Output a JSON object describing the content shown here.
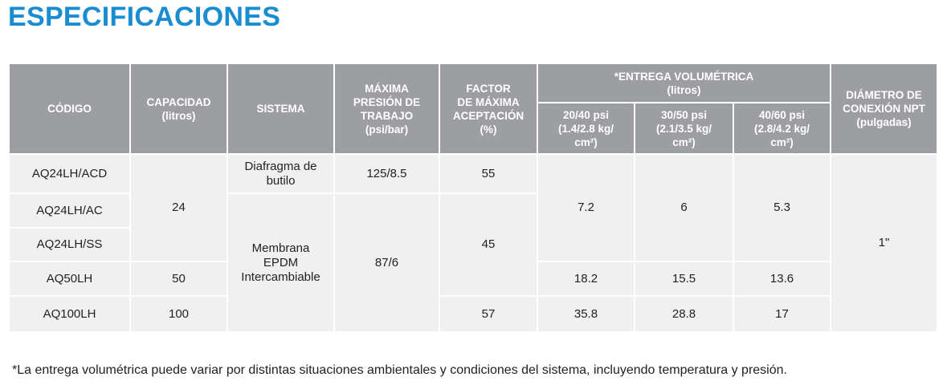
{
  "title": "ESPECIFICACIONES",
  "table": {
    "header_top": [
      "CÓDIGO",
      "CAPACIDAD\n(litros)",
      "SISTEMA",
      "MÁXIMA\nPRESIÓN DE\nTRABAJO\n(psi/bar)",
      "FACTOR\nDE MÁXIMA\nACEPTACIÓN\n(%)",
      "*ENTREGA VOLUMÉTRICA\n(litros)",
      "DIÁMETRO DE\nCONEXIÓN NPT\n(pulgadas)"
    ],
    "header_sub": [
      "20/40 psi\n(1.4/2.8 kg/\ncm²)",
      "30/50 psi\n(2.1/3.5 kg/\ncm²)",
      "40/60 psi\n(2.8/4.2 kg/\ncm²)"
    ],
    "rows": [
      [
        "AQ24LH/ACD",
        "24",
        "Diafragma de\nbutilo",
        "125/8.5",
        "55",
        "7.2",
        "6",
        "5.3",
        "1\""
      ],
      [
        "AQ24LH/AC",
        "Membrana\nEPDM\nIntercambiable",
        "87/6",
        "45"
      ],
      [
        "AQ24LH/SS"
      ],
      [
        "AQ50LH",
        "50",
        "18.2",
        "15.5",
        "13.6"
      ],
      [
        "AQ100LH",
        "100",
        "57",
        "35.8",
        "28.8",
        "17"
      ]
    ]
  },
  "footnote": "*La entrega volumétrica puede variar por distintas situaciones ambientales y condiciones del sistema, incluyendo temperatura y presión."
}
